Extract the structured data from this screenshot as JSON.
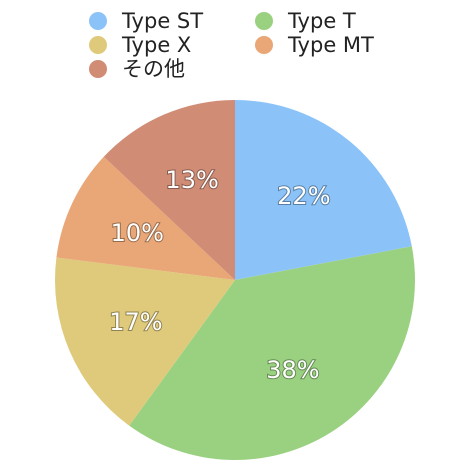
{
  "chart_data": {
    "type": "pie",
    "categories": [
      "Type ST",
      "Type T",
      "Type X",
      "Type MT",
      "その他"
    ],
    "values": [
      22,
      38,
      17,
      10,
      13
    ],
    "value_labels": [
      "22%",
      "38%",
      "17%",
      "10%",
      "13%"
    ],
    "colors": [
      "#8bc3f9",
      "#9ad180",
      "#dfca7c",
      "#e9a676",
      "#d18c76"
    ],
    "legend": "top"
  }
}
